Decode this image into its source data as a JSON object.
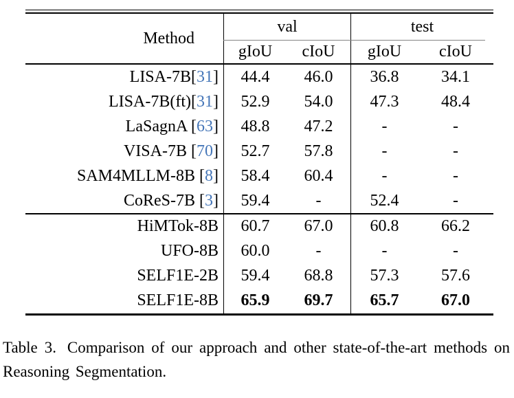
{
  "table": {
    "header": {
      "method": "Method",
      "groups": [
        {
          "label": "val"
        },
        {
          "label": "test"
        }
      ],
      "subheaders": [
        "gIoU",
        "cIoU",
        "gIoU",
        "cIoU"
      ]
    },
    "sections": [
      {
        "name": "prior-methods",
        "rows": [
          {
            "method": "LISA-7B",
            "co": "[",
            "cite": "31",
            "cc": "]",
            "vals": [
              "44.4",
              "46.0",
              "36.8",
              "34.1"
            ]
          },
          {
            "method": "LISA-7B(ft)",
            "co": "[",
            "cite": "31",
            "cc": "]",
            "vals": [
              "52.9",
              "54.0",
              "47.3",
              "48.4"
            ]
          },
          {
            "method": "LaSagnA ",
            "co": "[",
            "cite": "63",
            "cc": "]",
            "vals": [
              "48.8",
              "47.2",
              "-",
              "-"
            ]
          },
          {
            "method": "VISA-7B ",
            "co": "[",
            "cite": "70",
            "cc": "]",
            "vals": [
              "52.7",
              "57.8",
              "-",
              "-"
            ]
          },
          {
            "method": "SAM4MLLM-8B ",
            "co": "[",
            "cite": "8",
            "cc": "]",
            "vals": [
              "58.4",
              "60.4",
              "-",
              "-"
            ]
          },
          {
            "method": "CoReS-7B ",
            "co": "[",
            "cite": "3",
            "cc": "]",
            "vals": [
              "59.4",
              "-",
              "52.4",
              "-"
            ]
          }
        ]
      },
      {
        "name": "our-methods",
        "rows": [
          {
            "method": "HiMTok-8B",
            "vals": [
              "60.7",
              "67.0",
              "60.8",
              "66.2"
            ]
          },
          {
            "method": "UFO-8B",
            "vals": [
              "60.0",
              "-",
              "-",
              "-"
            ]
          },
          {
            "method": "SELF1E-2B",
            "vals": [
              "59.4",
              "68.8",
              "57.3",
              "57.6"
            ]
          },
          {
            "method": "SELF1E-8B",
            "vals": [
              "65.9",
              "69.7",
              "65.7",
              "67.0"
            ],
            "emphasis": "bold"
          }
        ]
      }
    ]
  },
  "caption": {
    "label": "Table 3.",
    "text": "Comparison of our approach and other state-of-the-art methods on Reasoning Segmentation."
  },
  "colors": {
    "cite_link": "#4576b8",
    "header_midrule_gray": "#848484",
    "text": "#000000"
  }
}
